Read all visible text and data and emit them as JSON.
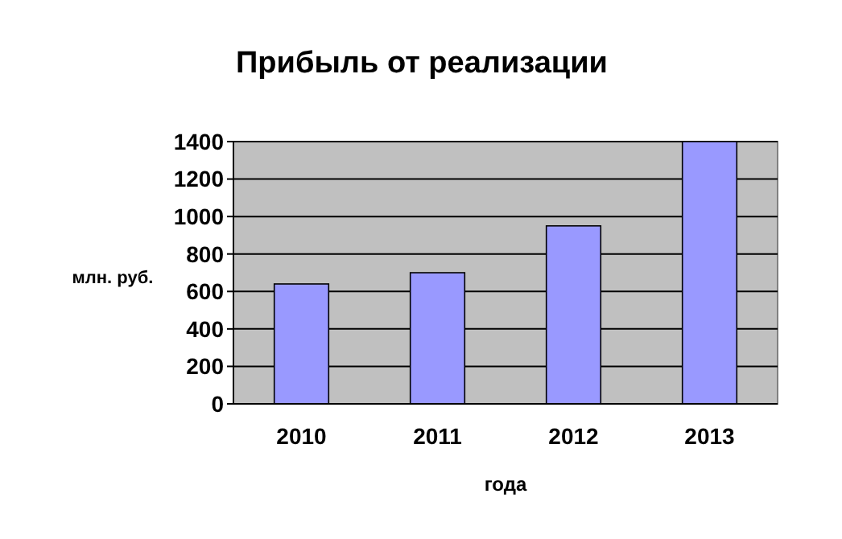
{
  "chart_data": {
    "type": "bar",
    "title": "Прибыль от реализации",
    "xlabel": "года",
    "ylabel": "млн. руб.",
    "categories": [
      "2010",
      "2011",
      "2012",
      "2013"
    ],
    "values": [
      640,
      700,
      950,
      1400
    ],
    "color": "#9999ff",
    "ylim": [
      0,
      1400
    ],
    "yticks": [
      0,
      200,
      400,
      600,
      800,
      1000,
      1200,
      1400
    ],
    "grid": "y"
  }
}
